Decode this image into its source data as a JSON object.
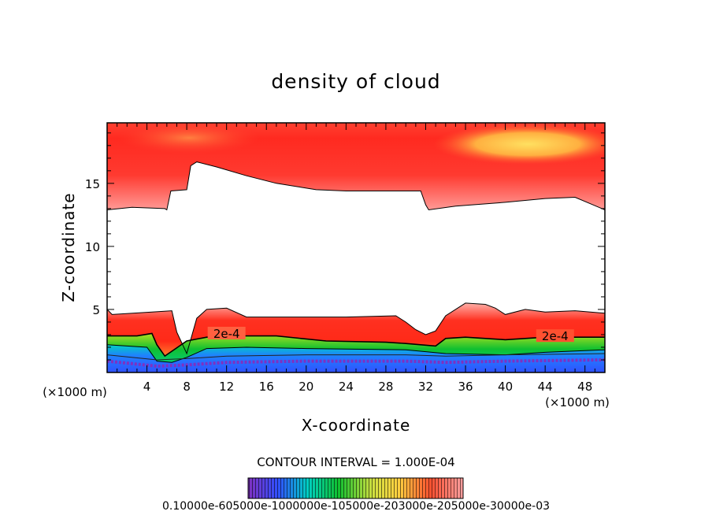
{
  "chart_data": {
    "type": "heatmap",
    "title": "density of cloud",
    "xlabel": "X-coordinate",
    "ylabel": "Z-coordinate",
    "x_unit": "(×1000 m)",
    "x_unit_right": "(×1000 m)",
    "xlim": [
      0,
      50
    ],
    "ylim": [
      0,
      19.8
    ],
    "xticks": [
      4,
      8,
      12,
      16,
      20,
      24,
      28,
      32,
      36,
      40,
      44,
      48
    ],
    "yticks": [
      5,
      10,
      15
    ],
    "contour_interval_label": "CONTOUR INTERVAL = 1.000E-04",
    "contour_labels": [
      {
        "text": "2e-4",
        "x": 12.0,
        "z": 3.0
      },
      {
        "text": "2e-4",
        "x": 45.0,
        "z": 2.8
      }
    ],
    "colorbar_labels": "0.10000e-605000e-1000000e-105000e-203000e-205000e-30000e-03",
    "colors": {
      "red": "#ff2a20",
      "orange": "#ff7a30",
      "yellow": "#ffd040",
      "green": "#10c030",
      "cyan": "#00d0c0",
      "blue": "#3050ff",
      "purple": "#8030c0"
    },
    "upper_boundary": [
      [
        0,
        12.9
      ],
      [
        2.5,
        13.1
      ],
      [
        5.8,
        13.0
      ],
      [
        6.0,
        12.9
      ],
      [
        6.4,
        14.4
      ],
      [
        8.0,
        14.5
      ],
      [
        8.4,
        16.4
      ],
      [
        9.0,
        16.7
      ],
      [
        11.0,
        16.3
      ],
      [
        14.0,
        15.6
      ],
      [
        17.0,
        15.0
      ],
      [
        21.0,
        14.5
      ],
      [
        24.0,
        14.4
      ],
      [
        28.0,
        14.4
      ],
      [
        31.5,
        14.4
      ],
      [
        32.0,
        13.3
      ],
      [
        32.3,
        12.9
      ],
      [
        35.0,
        13.2
      ],
      [
        40.0,
        13.5
      ],
      [
        44.0,
        13.8
      ],
      [
        47.0,
        13.9
      ],
      [
        50,
        12.9
      ]
    ],
    "lower_boundary": [
      [
        0,
        5.0
      ],
      [
        0.5,
        4.6
      ],
      [
        4.5,
        4.8
      ],
      [
        6.5,
        4.9
      ],
      [
        7.0,
        3.2
      ],
      [
        8.0,
        1.5
      ],
      [
        9.0,
        4.3
      ],
      [
        10.0,
        5.0
      ],
      [
        12.0,
        5.1
      ],
      [
        14.0,
        4.4
      ],
      [
        17.0,
        4.4
      ],
      [
        24.0,
        4.4
      ],
      [
        29.0,
        4.5
      ],
      [
        30.0,
        4.0
      ],
      [
        31.0,
        3.4
      ],
      [
        32.0,
        3.0
      ],
      [
        33.0,
        3.3
      ],
      [
        34.0,
        4.5
      ],
      [
        36.0,
        5.5
      ],
      [
        38.0,
        5.4
      ],
      [
        39.0,
        5.1
      ],
      [
        40.0,
        4.6
      ],
      [
        42.0,
        5.0
      ],
      [
        44.0,
        4.8
      ],
      [
        47.0,
        4.9
      ],
      [
        50,
        4.7
      ]
    ],
    "contour_2e4": [
      [
        0,
        2.9
      ],
      [
        3.0,
        2.9
      ],
      [
        4.5,
        3.1
      ],
      [
        5.0,
        2.2
      ],
      [
        5.8,
        1.3
      ],
      [
        8.0,
        2.5
      ],
      [
        10.0,
        2.8
      ],
      [
        13.0,
        2.9
      ],
      [
        17.0,
        2.9
      ],
      [
        22.0,
        2.5
      ],
      [
        28.0,
        2.4
      ],
      [
        30.0,
        2.3
      ],
      [
        33.0,
        2.1
      ],
      [
        34.0,
        2.7
      ],
      [
        36.0,
        2.8
      ],
      [
        40.0,
        2.6
      ],
      [
        44.0,
        2.8
      ],
      [
        50,
        2.8
      ]
    ],
    "contour_1e4": [
      [
        0,
        2.2
      ],
      [
        4.0,
        2.0
      ],
      [
        5.0,
        0.9
      ],
      [
        6.5,
        0.8
      ],
      [
        8.0,
        1.2
      ],
      [
        10.0,
        1.9
      ],
      [
        14.0,
        2.0
      ],
      [
        20.0,
        1.9
      ],
      [
        30.0,
        1.8
      ],
      [
        34.0,
        1.5
      ],
      [
        40.0,
        1.4
      ],
      [
        44.0,
        1.6
      ],
      [
        50,
        1.8
      ]
    ],
    "base_line": [
      [
        0,
        0.9
      ],
      [
        5.0,
        0.5
      ],
      [
        8.0,
        0.6
      ],
      [
        12.0,
        0.8
      ],
      [
        20.0,
        0.9
      ],
      [
        30.0,
        0.9
      ],
      [
        34.0,
        0.8
      ],
      [
        40.0,
        0.9
      ],
      [
        50,
        1.0
      ]
    ]
  }
}
